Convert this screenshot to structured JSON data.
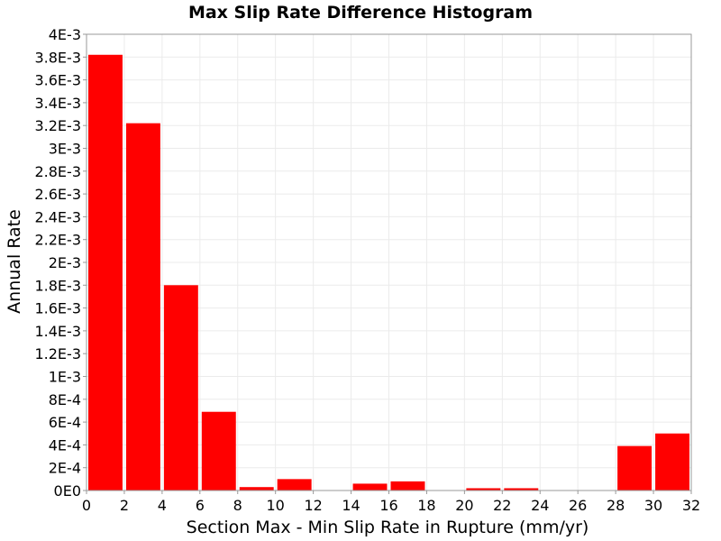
{
  "chart_data": {
    "type": "bar",
    "title": "Max Slip Rate Difference Histogram",
    "xlabel": "Section Max - Min Slip Rate in Rupture (mm/yr)",
    "ylabel": "Annual Rate",
    "xlim": [
      0,
      32
    ],
    "ylim": [
      0,
      0.004
    ],
    "bin_width": 2,
    "x": [
      1,
      3,
      5,
      7,
      9,
      11,
      13,
      15,
      17,
      19,
      21,
      23,
      25,
      27,
      29,
      31
    ],
    "values": [
      0.00382,
      0.00322,
      0.0018,
      0.00069,
      3e-05,
      0.0001,
      0,
      6e-05,
      8e-05,
      0,
      2e-05,
      2e-05,
      0,
      0,
      0.00039,
      0.0005
    ],
    "x_ticks": [
      0,
      2,
      4,
      6,
      8,
      10,
      12,
      14,
      16,
      18,
      20,
      22,
      24,
      26,
      28,
      30,
      32
    ],
    "x_tick_labels": [
      "0",
      "2",
      "4",
      "6",
      "8",
      "10",
      "12",
      "14",
      "16",
      "18",
      "20",
      "22",
      "24",
      "26",
      "28",
      "30",
      "32"
    ],
    "y_ticks": [
      0,
      0.0002,
      0.0004,
      0.0006,
      0.0008,
      0.001,
      0.0012,
      0.0014,
      0.0016,
      0.0018,
      0.002,
      0.0022,
      0.0024,
      0.0026,
      0.0028,
      0.003,
      0.0032,
      0.0034,
      0.0036,
      0.0038,
      0.004
    ],
    "y_tick_labels": [
      "0E0",
      "2E-4",
      "4E-4",
      "6E-4",
      "8E-4",
      "1E-3",
      "1.2E-3",
      "1.4E-3",
      "1.6E-3",
      "1.8E-3",
      "2E-3",
      "2.2E-3",
      "2.4E-3",
      "2.6E-3",
      "2.8E-3",
      "3E-3",
      "3.2E-3",
      "3.4E-3",
      "3.6E-3",
      "3.8E-3",
      "4E-3"
    ],
    "grid": true,
    "bar_color": "#ff0000",
    "grid_color": "#ebebeb",
    "legend": "none"
  }
}
